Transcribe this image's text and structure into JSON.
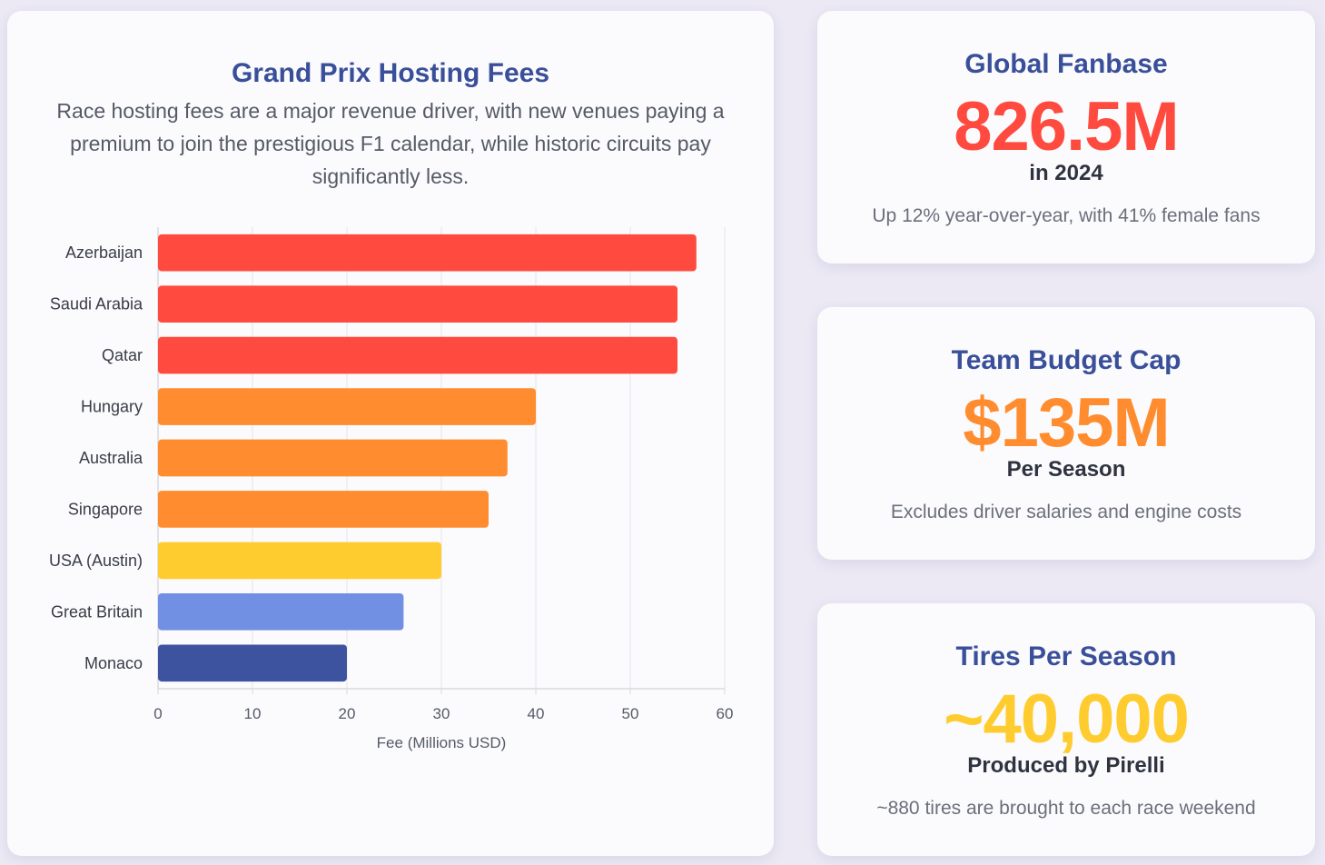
{
  "chart_data": {
    "type": "bar",
    "orientation": "horizontal",
    "title": "Grand Prix Hosting Fees",
    "subtitle": "Race hosting fees are a major revenue driver, with new venues paying a premium to join the prestigious F1 calendar, while historic circuits pay significantly less.",
    "xlabel": "Fee (Millions USD)",
    "ylabel": "",
    "xlim": [
      0,
      60
    ],
    "xticks": [
      "0",
      "10",
      "20",
      "30",
      "40",
      "50",
      "60"
    ],
    "grid": true,
    "categories": [
      "Azerbaijan",
      "Saudi Arabia",
      "Qatar",
      "Hungary",
      "Australia",
      "Singapore",
      "USA (Austin)",
      "Great Britain",
      "Monaco"
    ],
    "values": [
      57,
      55,
      55,
      40,
      37,
      35,
      30,
      26,
      20
    ],
    "colors": [
      "#ff4a3f",
      "#ff4a3f",
      "#ff4a3f",
      "#ff8c2e",
      "#ff8c2e",
      "#ff8c2e",
      "#ffcc30",
      "#7290e3",
      "#3d53a0"
    ]
  },
  "stats": {
    "fanbase": {
      "title": "Global Fanbase",
      "value": "826.5M",
      "sub": "in 2024",
      "note": "Up 12% year-over-year, with 41% female fans",
      "color": "#ff4a3f"
    },
    "budget": {
      "title": "Team Budget Cap",
      "value": "$135M",
      "sub": "Per Season",
      "note": "Excludes driver salaries and engine costs",
      "color": "#ff8c2e"
    },
    "tires": {
      "title": "Tires Per Season",
      "value": "~40,000",
      "sub": "Produced by Pirelli",
      "note": "~880 tires are brought to each race weekend",
      "color": "#ffcc30"
    }
  }
}
